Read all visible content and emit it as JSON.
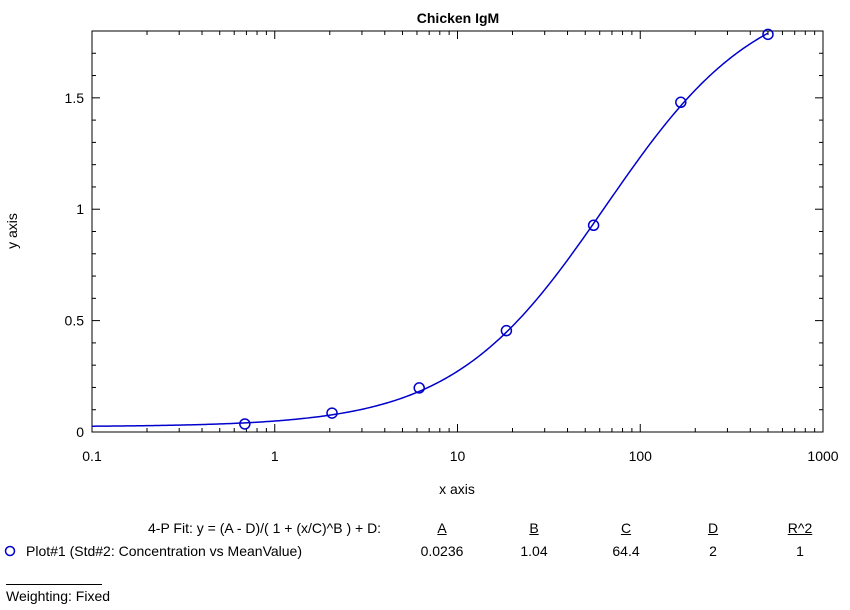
{
  "chart_data": {
    "type": "scatter",
    "title": "Chicken IgM",
    "xlabel": "x axis",
    "ylabel": "y axis",
    "xscale": "log",
    "xlim": [
      0.1,
      1000
    ],
    "ylim": [
      0,
      1.8
    ],
    "x_ticks": [
      0.1,
      1,
      10,
      100,
      1000
    ],
    "x_tick_labels": [
      "0.1",
      "1",
      "10",
      "100",
      "1000"
    ],
    "y_ticks": [
      0,
      0.5,
      1,
      1.5
    ],
    "y_tick_labels": [
      "0",
      "0.5",
      "1",
      "1.5"
    ],
    "grid": false,
    "accent_color": "#0000cc",
    "series": [
      {
        "name": "Plot#1 (Std#2: Concentration vs MeanValue)",
        "x": [
          0.686,
          2.058,
          6.173,
          18.52,
          55.56,
          166.7,
          500
        ],
        "y": [
          0.036,
          0.085,
          0.198,
          0.455,
          0.928,
          1.48,
          1.785
        ]
      }
    ],
    "fit": {
      "model": "4-P Fit",
      "A": 0.0236,
      "B": 1.04,
      "C": 64.4,
      "D": 2
    }
  },
  "fit_table": {
    "equation": "4-P Fit:  y = (A - D)/( 1 + (x/C)^B ) + D:",
    "headers": [
      "A",
      "B",
      "C",
      "D",
      "R^2"
    ],
    "row_label": "Plot#1 (Std#2: Concentration vs MeanValue)",
    "row_values": [
      "0.0236",
      "1.04",
      "64.4",
      "2",
      "1"
    ]
  },
  "weighting": "Weighting: Fixed"
}
